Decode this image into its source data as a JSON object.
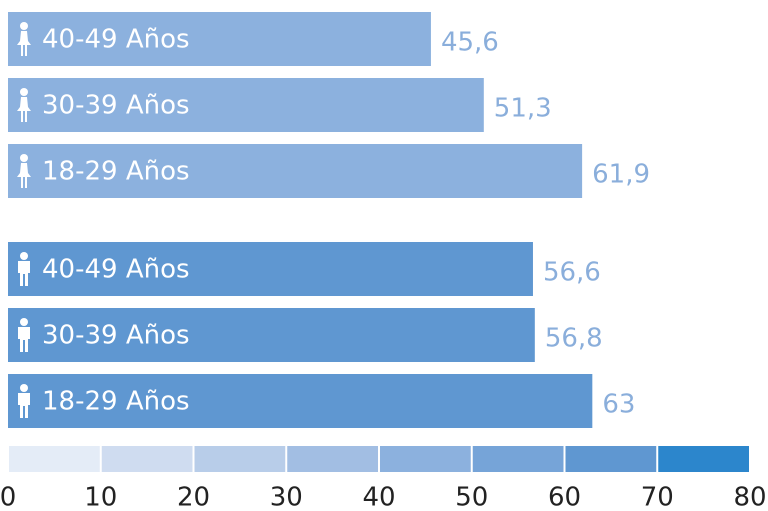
{
  "chart_data": {
    "type": "bar",
    "orientation": "horizontal",
    "series": [
      {
        "color": "#8cb1de",
        "categories": [
          "40-49 Años",
          "30-39 Años",
          "18-29 Años"
        ],
        "values": [
          45.6,
          51.3,
          61.9
        ],
        "value_labels": [
          "45,6",
          "51,3",
          "61,9"
        ]
      },
      {
        "color": "#5f97d1",
        "categories": [
          "40-49 Años",
          "30-39 Años",
          "18-29 Años"
        ],
        "values": [
          56.6,
          56.8,
          63
        ],
        "value_labels": [
          "56,6",
          "56,8",
          "63"
        ]
      }
    ],
    "xlim": [
      0,
      80
    ],
    "xticks": [
      0,
      10,
      20,
      30,
      40,
      50,
      60,
      70,
      80
    ],
    "color_scale": [
      "#e4ecf7",
      "#cfdcf0",
      "#b8cde9",
      "#a2bee3",
      "#8cb1de",
      "#76a4d8",
      "#5f97d1",
      "#2c86cc"
    ]
  }
}
